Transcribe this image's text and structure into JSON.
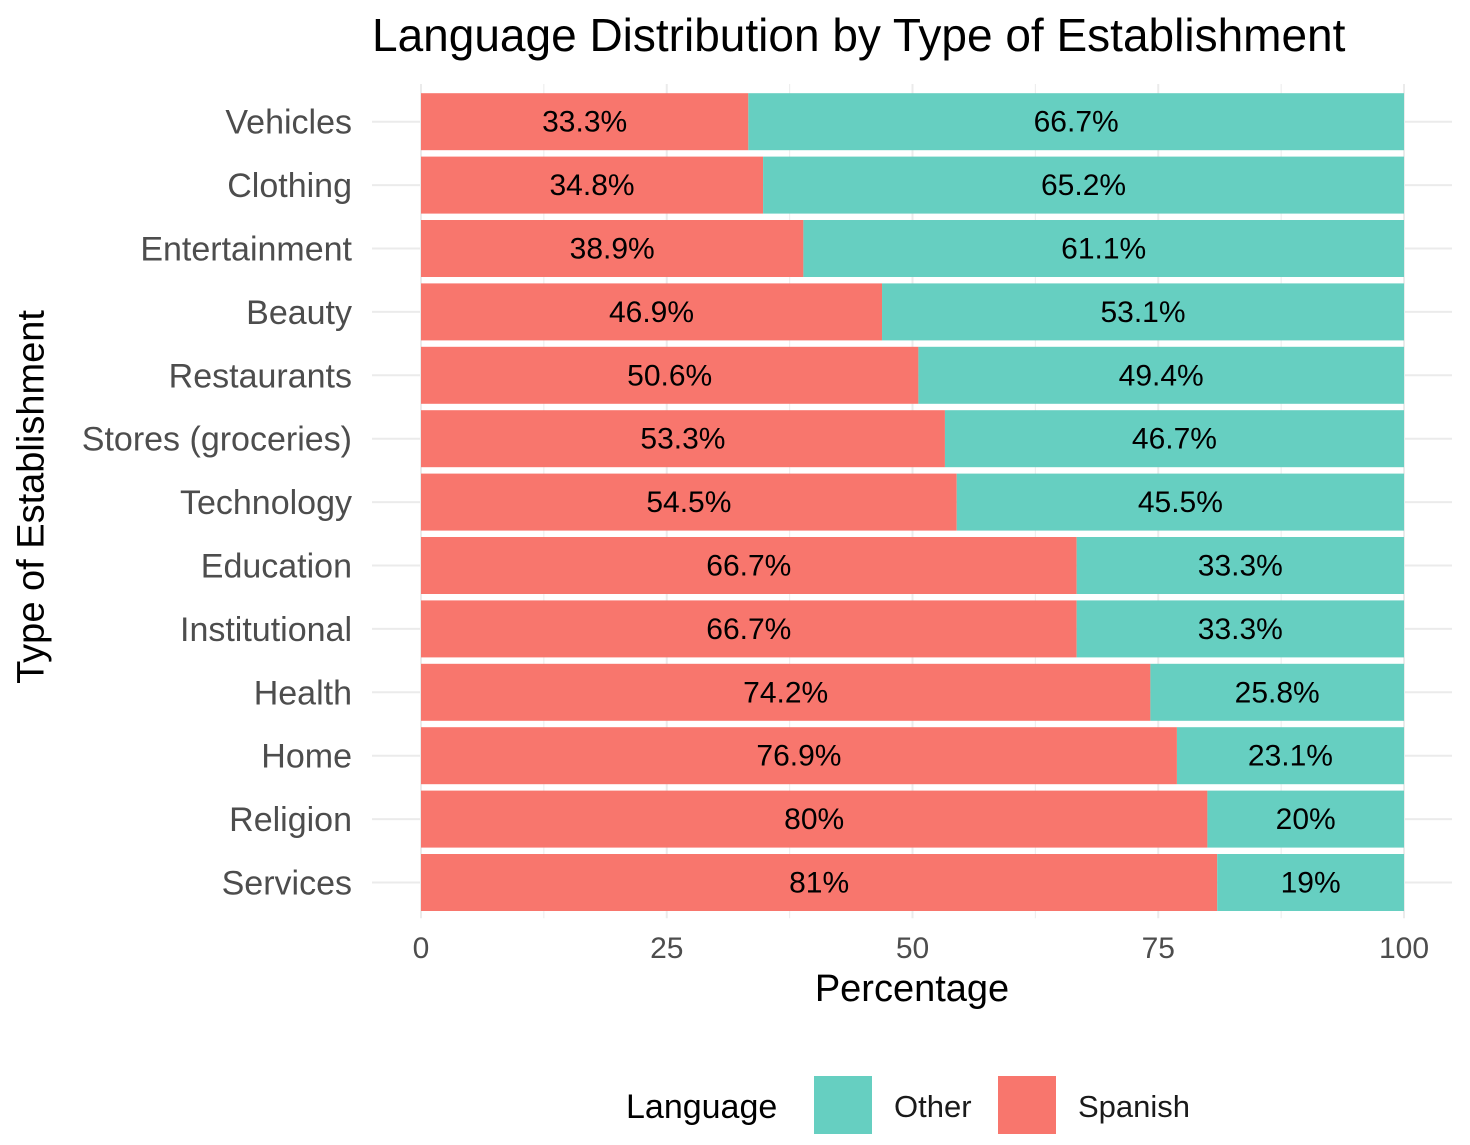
{
  "chart_data": {
    "type": "bar",
    "orientation": "horizontal",
    "stacked": true,
    "title": "Language Distribution by Type of Establishment",
    "xlabel": "Percentage",
    "ylabel": "Type of Establishment",
    "xlim": [
      0,
      100
    ],
    "xticks": [
      0,
      25,
      50,
      75,
      100
    ],
    "grid": true,
    "legend_title": "Language",
    "legend_position": "bottom",
    "categories": [
      "Vehicles",
      "Clothing",
      "Entertainment",
      "Beauty",
      "Restaurants",
      "Stores (groceries)",
      "Technology",
      "Education",
      "Institutional",
      "Health",
      "Home",
      "Religion",
      "Services"
    ],
    "series": [
      {
        "name": "Spanish",
        "color": "#F8766D",
        "values": [
          33.3,
          34.8,
          38.9,
          46.9,
          50.6,
          53.3,
          54.5,
          66.7,
          66.7,
          74.2,
          76.9,
          80,
          81
        ],
        "labels": [
          "33.3%",
          "34.8%",
          "38.9%",
          "46.9%",
          "50.6%",
          "53.3%",
          "54.5%",
          "66.7%",
          "66.7%",
          "74.2%",
          "76.9%",
          "80%",
          "81%"
        ]
      },
      {
        "name": "Other",
        "color": "#66CFC1",
        "values": [
          66.7,
          65.2,
          61.1,
          53.1,
          49.4,
          46.7,
          45.5,
          33.3,
          33.3,
          25.8,
          23.1,
          20,
          19
        ],
        "labels": [
          "66.7%",
          "65.2%",
          "61.1%",
          "53.1%",
          "49.4%",
          "46.7%",
          "45.5%",
          "33.3%",
          "33.3%",
          "25.8%",
          "23.1%",
          "20%",
          "19%"
        ]
      }
    ],
    "legend_order": [
      "Other",
      "Spanish"
    ]
  }
}
